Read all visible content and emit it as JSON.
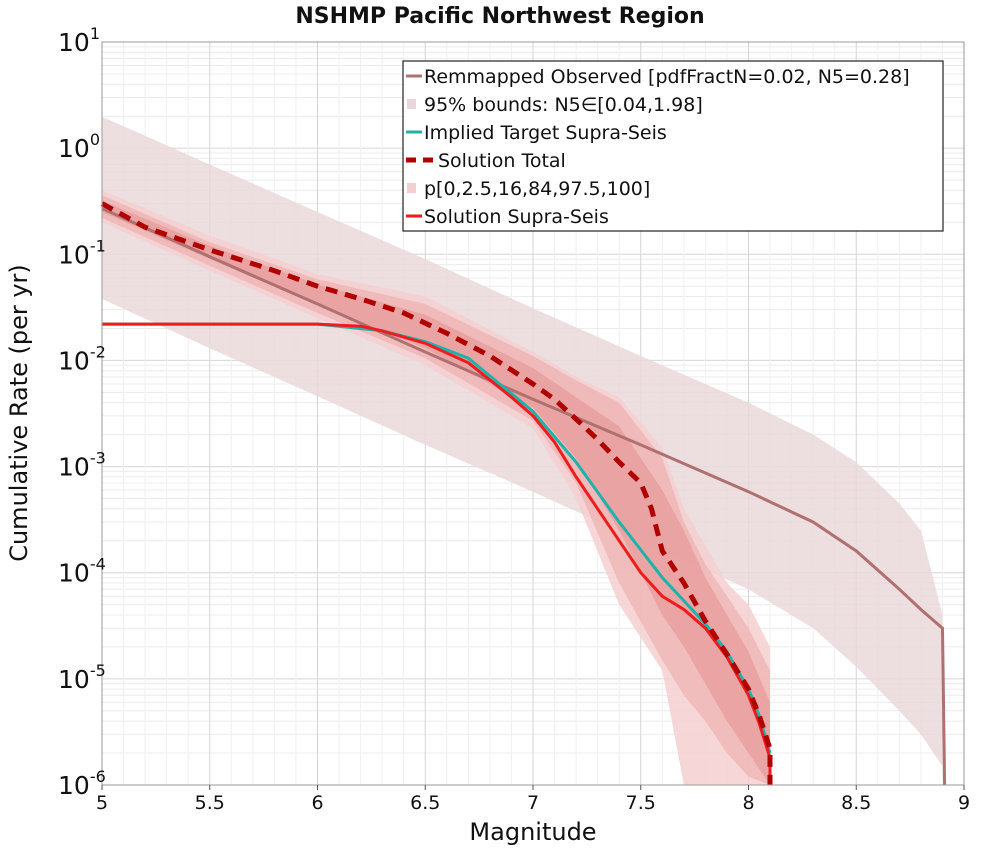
{
  "chart_data": {
    "type": "line",
    "title": "NSHMP Pacific Northwest Region",
    "xlabel": "Magnitude",
    "ylabel": "Cumulative Rate (per yr)",
    "xlim": [
      5,
      9
    ],
    "ylim_log10": [
      -6,
      1
    ],
    "y_scale": "log",
    "grid": true,
    "legend_position": "top-right",
    "xticks": [
      "5",
      "5.5",
      "6",
      "6.5",
      "7",
      "7.5",
      "8",
      "8.5",
      "9"
    ],
    "yticks": [
      {
        "base": "10",
        "exp": "-6"
      },
      {
        "base": "10",
        "exp": "-5"
      },
      {
        "base": "10",
        "exp": "-4"
      },
      {
        "base": "10",
        "exp": "-3"
      },
      {
        "base": "10",
        "exp": "-2"
      },
      {
        "base": "10",
        "exp": "-1"
      },
      {
        "base": "10",
        "exp": "0"
      },
      {
        "base": "10",
        "exp": "1"
      }
    ],
    "colors": {
      "observed": "#b07070",
      "observed_band": "#ead8da",
      "target": "#20b2aa",
      "total": "#b00000",
      "supra": "#ee1c1c",
      "band_outer": "#f5cfcf",
      "band_mid": "#eeb1b1",
      "band_inner": "#e59090"
    },
    "legend": [
      {
        "label": "Remmapped Observed [pdfFractN=0.02, N5=0.28]",
        "key": "observed"
      },
      {
        "label": "95% bounds: N5∈[0.04,1.98]",
        "key": "observed_band"
      },
      {
        "label": "Implied Target Supra-Seis",
        "key": "target"
      },
      {
        "label": "Solution Total",
        "key": "total"
      },
      {
        "label": "p[0,2.5,16,84,97.5,100]",
        "key": "band_outer"
      },
      {
        "label": "Solution Supra-Seis",
        "key": "supra"
      }
    ],
    "series": [
      {
        "name": "Remmapped Observed [pdfFractN=0.02, N5=0.28]",
        "x": [
          5.0,
          5.5,
          6.0,
          6.5,
          7.0,
          7.5,
          8.0,
          8.3,
          8.5,
          8.7,
          8.8,
          8.9,
          8.91
        ],
        "y": [
          0.27,
          0.095,
          0.034,
          0.012,
          0.0043,
          0.0016,
          0.00058,
          0.0003,
          0.00016,
          7e-05,
          4.5e-05,
          3e-05,
          1e-06
        ]
      },
      {
        "name": "95% bounds: N5∈[0.04,1.98]",
        "x": [
          5.0,
          5.5,
          6.0,
          6.5,
          7.0,
          7.5,
          8.0,
          8.3,
          8.5,
          8.7,
          8.8,
          8.9
        ],
        "upper": [
          1.98,
          0.7,
          0.25,
          0.09,
          0.031,
          0.011,
          0.004,
          0.002,
          0.0011,
          0.00045,
          0.00025,
          4e-05
        ],
        "lower": [
          0.038,
          0.013,
          0.0046,
          0.0016,
          0.00058,
          0.0002,
          7e-05,
          3e-05,
          1.3e-05,
          5e-06,
          3e-06,
          1.5e-06
        ]
      },
      {
        "name": "Implied Target Supra-Seis",
        "x": [
          5.0,
          6.0,
          6.3,
          6.5,
          6.7,
          7.0,
          7.2,
          7.4,
          7.6,
          7.8,
          7.9,
          8.0,
          8.05,
          8.1
        ],
        "y": [
          0.022,
          0.022,
          0.019,
          0.015,
          0.0105,
          0.0033,
          0.0011,
          0.0003,
          9e-05,
          3.3e-05,
          1.8e-05,
          8e-06,
          4.5e-06,
          2e-06
        ]
      },
      {
        "name": "Solution Total",
        "x": [
          5.0,
          5.2,
          5.5,
          5.8,
          6.0,
          6.2,
          6.4,
          6.6,
          6.8,
          7.0,
          7.1,
          7.2,
          7.3,
          7.4,
          7.5,
          7.55,
          7.6,
          7.7,
          7.8,
          7.9,
          8.0,
          8.05,
          8.1,
          8.1
        ],
        "y": [
          0.3,
          0.18,
          0.11,
          0.07,
          0.05,
          0.038,
          0.028,
          0.018,
          0.011,
          0.006,
          0.0043,
          0.0028,
          0.0018,
          0.0011,
          0.0007,
          0.0004,
          0.00016,
          8e-05,
          3.5e-05,
          1.7e-05,
          8e-06,
          4.5e-06,
          2.2e-06,
          1e-06
        ]
      },
      {
        "name": "p[0,2.5,16,84,97.5,100]",
        "x": [
          5.0,
          5.5,
          6.0,
          6.5,
          7.0,
          7.2,
          7.4,
          7.6,
          7.7,
          7.8,
          7.9,
          8.0,
          8.1
        ],
        "bands": {
          "outer_upper": [
            0.4,
            0.15,
            0.065,
            0.04,
            0.012,
            0.007,
            0.0045,
            0.0015,
            0.0004,
            0.00018,
            8e-05,
            5e-05,
            2e-05
          ],
          "outer_lower": [
            0.2,
            0.07,
            0.025,
            0.009,
            0.0023,
            0.0005,
            5e-05,
            1.2e-05,
            1e-06,
            1e-06,
            1e-06,
            1e-06,
            1e-06
          ],
          "mid_upper": [
            0.36,
            0.13,
            0.058,
            0.034,
            0.011,
            0.0065,
            0.004,
            0.0012,
            0.0003,
            0.00012,
            6e-05,
            3e-05,
            1.2e-05
          ],
          "mid_lower": [
            0.22,
            0.078,
            0.028,
            0.0105,
            0.0027,
            0.0007,
            8e-05,
            1.5e-05,
            7e-06,
            4e-06,
            2e-06,
            1.2e-06,
            1e-06
          ],
          "inner_upper": [
            0.32,
            0.12,
            0.052,
            0.027,
            0.0085,
            0.0045,
            0.0024,
            0.0006,
            0.00025,
            9e-05,
            4e-05,
            1.8e-05,
            6e-06
          ],
          "inner_lower": [
            0.25,
            0.09,
            0.033,
            0.013,
            0.0036,
            0.0012,
            0.00025,
            4e-05,
            2e-05,
            9e-06,
            4e-06,
            2e-06,
            1e-06
          ]
        }
      },
      {
        "name": "Solution Supra-Seis",
        "x": [
          5.0,
          5.5,
          6.0,
          6.2,
          6.3,
          6.5,
          6.7,
          6.9,
          7.0,
          7.1,
          7.2,
          7.3,
          7.4,
          7.5,
          7.6,
          7.7,
          7.8,
          7.9,
          8.0,
          8.05,
          8.1,
          8.1
        ],
        "y": [
          0.022,
          0.022,
          0.022,
          0.021,
          0.019,
          0.0145,
          0.0095,
          0.0045,
          0.003,
          0.0017,
          0.0008,
          0.0004,
          0.0002,
          0.0001,
          6e-05,
          4.5e-05,
          3e-05,
          1.6e-05,
          7e-06,
          3.8e-06,
          1.8e-06,
          1e-06
        ]
      }
    ]
  }
}
